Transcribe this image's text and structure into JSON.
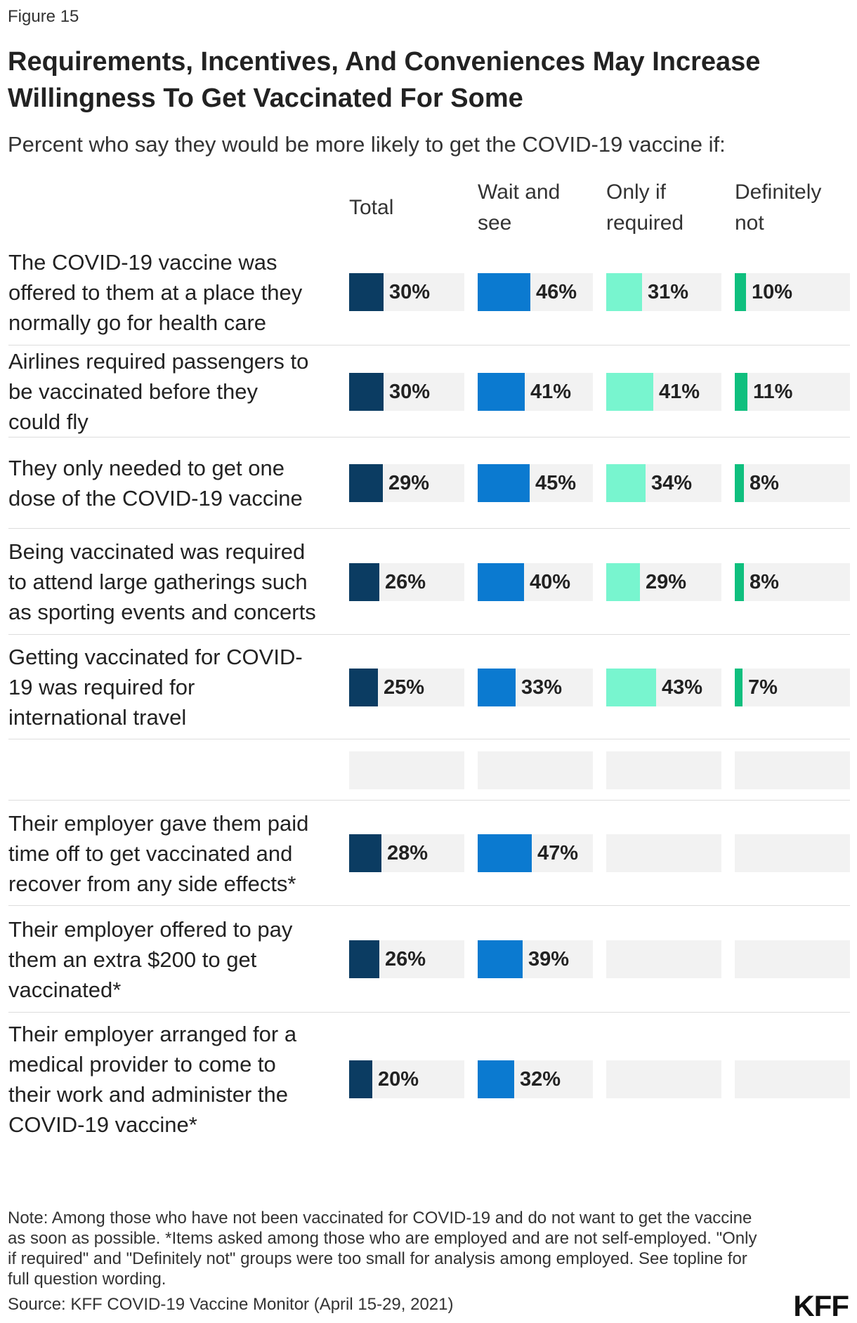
{
  "figure_label": "Figure 15",
  "title": "Requirements, Incentives, And Conveniences May Increase Willingness To Get Vaccinated For Some",
  "subtitle": "Percent who say they would be more likely to get the COVID-19 vaccine if:",
  "colors": {
    "Total": "#0b3c62",
    "Wait and see": "#0b7ad0",
    "Only if required": "#78f5cf",
    "Definitely not": "#0fbf7e",
    "track": "#f2f2f2"
  },
  "chart_data": {
    "type": "bar",
    "orientation": "horizontal",
    "title": "Requirements, Incentives, And Conveniences May Increase Willingness To Get Vaccinated For Some",
    "subtitle": "Percent who say they would be more likely to get the COVID-19 vaccine if:",
    "unit": "%",
    "xlim": [
      0,
      100
    ],
    "grid": false,
    "series_names": [
      "Total",
      "Wait and see",
      "Only if required",
      "Definitely not"
    ],
    "series_labels": [
      [
        "Total"
      ],
      [
        "Wait and",
        "see"
      ],
      [
        "Only if",
        "required"
      ],
      [
        "Definitely",
        "not"
      ]
    ],
    "rows": [
      {
        "label": [
          "The COVID-19 vaccine was",
          "offered to them at a place they",
          "normally go for health care"
        ],
        "values": [
          30,
          46,
          31,
          10
        ]
      },
      {
        "label": [
          "Airlines required passengers to",
          "be vaccinated before they",
          "could fly"
        ],
        "values": [
          30,
          41,
          41,
          11
        ]
      },
      {
        "label": [
          "They only needed to get one",
          "dose of the COVID-19 vaccine"
        ],
        "values": [
          29,
          45,
          34,
          8
        ]
      },
      {
        "label": [
          "Being vaccinated was required",
          "to attend large gatherings such",
          "as sporting events and concerts"
        ],
        "values": [
          26,
          40,
          29,
          8
        ]
      },
      {
        "label": [
          "Getting vaccinated for COVID-",
          "19 was required for",
          "international travel"
        ],
        "values": [
          25,
          33,
          43,
          7
        ]
      },
      {
        "label": [],
        "values": [
          null,
          null,
          null,
          null
        ]
      },
      {
        "label": [
          "Their employer gave them paid",
          "time off to get vaccinated and",
          "recover from any side effects*"
        ],
        "values": [
          28,
          47,
          null,
          null
        ]
      },
      {
        "label": [
          "Their employer offered to pay",
          "them an extra $200 to get",
          "vaccinated*"
        ],
        "values": [
          26,
          39,
          null,
          null
        ]
      },
      {
        "label": [
          "Their employer arranged for a",
          "medical provider to come to",
          "their work and administer the",
          "COVID-19 vaccine*"
        ],
        "values": [
          20,
          32,
          null,
          null
        ]
      }
    ]
  },
  "note": "Note: Among those who have not been vaccinated for COVID-19 and do not want to get the vaccine as soon as possible. *Items asked among those who are employed and are not self-employed. \"Only if required\" and \"Definitely not\" groups were too small for analysis among employed. See topline for full question wording.",
  "source": "Source: KFF COVID-19 Vaccine Monitor (April 15-29, 2021)",
  "logo_text": "KFF"
}
